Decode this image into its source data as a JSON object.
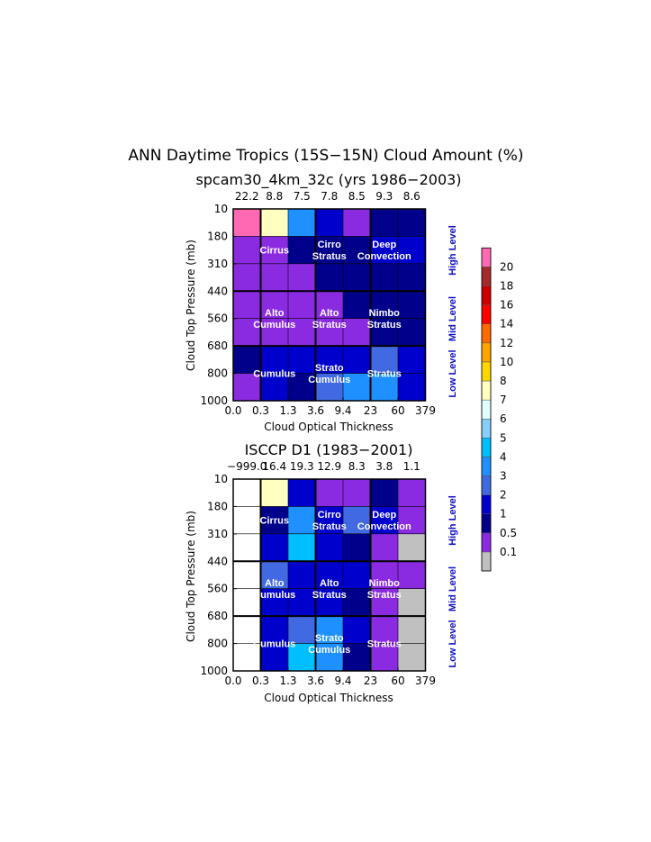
{
  "chart_data": [
    {
      "type": "heatmap",
      "title": "ANN Daytime Tropics (15S−15N) Cloud Amount (%)",
      "subtitle": "spcam30_4km_32c (yrs 1986−2003)",
      "xlabel": "Cloud Optical Thickness",
      "ylabel": "Cloud Top Pressure (mb)",
      "x_ticks": [
        "0.0",
        "0.3",
        "1.3",
        "3.6",
        "9.4",
        "23",
        "60",
        "379"
      ],
      "y_ticks": [
        "10",
        "180",
        "310",
        "440",
        "560",
        "680",
        "800",
        "1000"
      ],
      "column_totals": [
        "22.2",
        "8.8",
        "7.5",
        "7.8",
        "8.5",
        "9.3",
        "8.6"
      ],
      "rows_top_to_bottom": [
        [
          21,
          7.2,
          3.5,
          1.5,
          0.4,
          0.8,
          0.9
        ],
        [
          0.4,
          0.4,
          0.7,
          0.9,
          0.8,
          1.2,
          1.5
        ],
        [
          0.3,
          0.3,
          0.3,
          0.9,
          0.8,
          0.8,
          0.8
        ],
        [
          0.3,
          0.3,
          0.3,
          0.3,
          0.8,
          0.8,
          0.8
        ],
        [
          0.3,
          0.3,
          0.3,
          0.4,
          0.4,
          0.8,
          0.8
        ],
        [
          0.5,
          1.5,
          1.5,
          1.5,
          1.5,
          2.5,
          1.5
        ],
        [
          0.3,
          1.5,
          0.9,
          2.5,
          3.5,
          3.5,
          1.5
        ]
      ],
      "region_labels": [
        {
          "text": "Cirrus",
          "col": 1.5,
          "row": 1.5
        },
        {
          "text": "Cirro\nStratus",
          "col": 3.5,
          "row": 1.5
        },
        {
          "text": "Deep\nConvection",
          "col": 5.5,
          "row": 1.5
        },
        {
          "text": "Alto\nCumulus",
          "col": 1.5,
          "row": 4
        },
        {
          "text": "Alto\nStratus",
          "col": 3.5,
          "row": 4
        },
        {
          "text": "Nimbo\nStratus",
          "col": 5.5,
          "row": 4
        },
        {
          "text": "Cumulus",
          "col": 1.5,
          "row": 6
        },
        {
          "text": "Strato\nCumulus",
          "col": 3.5,
          "row": 6
        },
        {
          "text": "Stratus",
          "col": 5.5,
          "row": 6
        }
      ]
    },
    {
      "type": "heatmap",
      "title": "ISCCP D1 (1983−2001)",
      "xlabel": "Cloud Optical Thickness",
      "ylabel": "Cloud Top Pressure (mb)",
      "x_ticks": [
        "0.0",
        "0.3",
        "1.3",
        "3.6",
        "9.4",
        "23",
        "60",
        "379"
      ],
      "y_ticks": [
        "10",
        "180",
        "310",
        "440",
        "560",
        "680",
        "800",
        "1000"
      ],
      "column_totals": [
        "−999.0",
        "16.4",
        "19.3",
        "12.9",
        "8.3",
        "3.8",
        "1.1"
      ],
      "rows_top_to_bottom": [
        [
          null,
          7.5,
          1.5,
          0.4,
          0.4,
          0.9,
          0.4
        ],
        [
          null,
          0.9,
          3.5,
          1.5,
          2.5,
          1.5,
          0.4
        ],
        [
          null,
          1.5,
          4.5,
          1.5,
          0.9,
          0.4,
          0.05
        ],
        [
          null,
          2.5,
          1.5,
          1.5,
          1.5,
          0.4,
          0.4
        ],
        [
          null,
          1.5,
          1.5,
          1.5,
          0.9,
          0.4,
          0.05
        ],
        [
          null,
          1.5,
          2.5,
          3.5,
          1.5,
          0.4,
          0.05
        ],
        [
          null,
          1.5,
          4.5,
          3.5,
          0.9,
          0.4,
          0.05
        ]
      ],
      "region_labels": [
        {
          "text": "Cirrus",
          "col": 1.5,
          "row": 1.5
        },
        {
          "text": "Cirro\nStratus",
          "col": 3.5,
          "row": 1.5
        },
        {
          "text": "Deep\nConvection",
          "col": 5.5,
          "row": 1.5
        },
        {
          "text": "Alto\nCumulus",
          "col": 1.5,
          "row": 4
        },
        {
          "text": "Alto\nStratus",
          "col": 3.5,
          "row": 4
        },
        {
          "text": "Nimbo\nStratus",
          "col": 5.5,
          "row": 4
        },
        {
          "text": "Cumulus",
          "col": 1.5,
          "row": 6
        },
        {
          "text": "Strato\nCumulus",
          "col": 3.5,
          "row": 6
        },
        {
          "text": "Stratus",
          "col": 5.5,
          "row": 6
        }
      ]
    }
  ],
  "level_labels": [
    "High Level",
    "Mid Level",
    "Low Level"
  ],
  "colorbar": {
    "tick_labels": [
      "0.1",
      "0.5",
      "1",
      "2",
      "3",
      "4",
      "5",
      "6",
      "7",
      "8",
      "10",
      "12",
      "14",
      "16",
      "18",
      "20"
    ],
    "bins": [
      {
        "min": 0,
        "color": "#c0c0c0"
      },
      {
        "min": 0.1,
        "color": "#8a2be2"
      },
      {
        "min": 0.5,
        "color": "#00008b"
      },
      {
        "min": 1,
        "color": "#0000cd"
      },
      {
        "min": 2,
        "color": "#4169e1"
      },
      {
        "min": 3,
        "color": "#1e90ff"
      },
      {
        "min": 4,
        "color": "#00bfff"
      },
      {
        "min": 5,
        "color": "#87cefa"
      },
      {
        "min": 6,
        "color": "#e0ffff"
      },
      {
        "min": 7,
        "color": "#ffffc0"
      },
      {
        "min": 8,
        "color": "#ffd700"
      },
      {
        "min": 10,
        "color": "#ffa500"
      },
      {
        "min": 12,
        "color": "#ff6a00"
      },
      {
        "min": 14,
        "color": "#ff0000"
      },
      {
        "min": 16,
        "color": "#cd0000"
      },
      {
        "min": 18,
        "color": "#a52a2a"
      },
      {
        "min": 20,
        "color": "#ff69b4"
      }
    ],
    "missing_color": "#ffffff"
  }
}
